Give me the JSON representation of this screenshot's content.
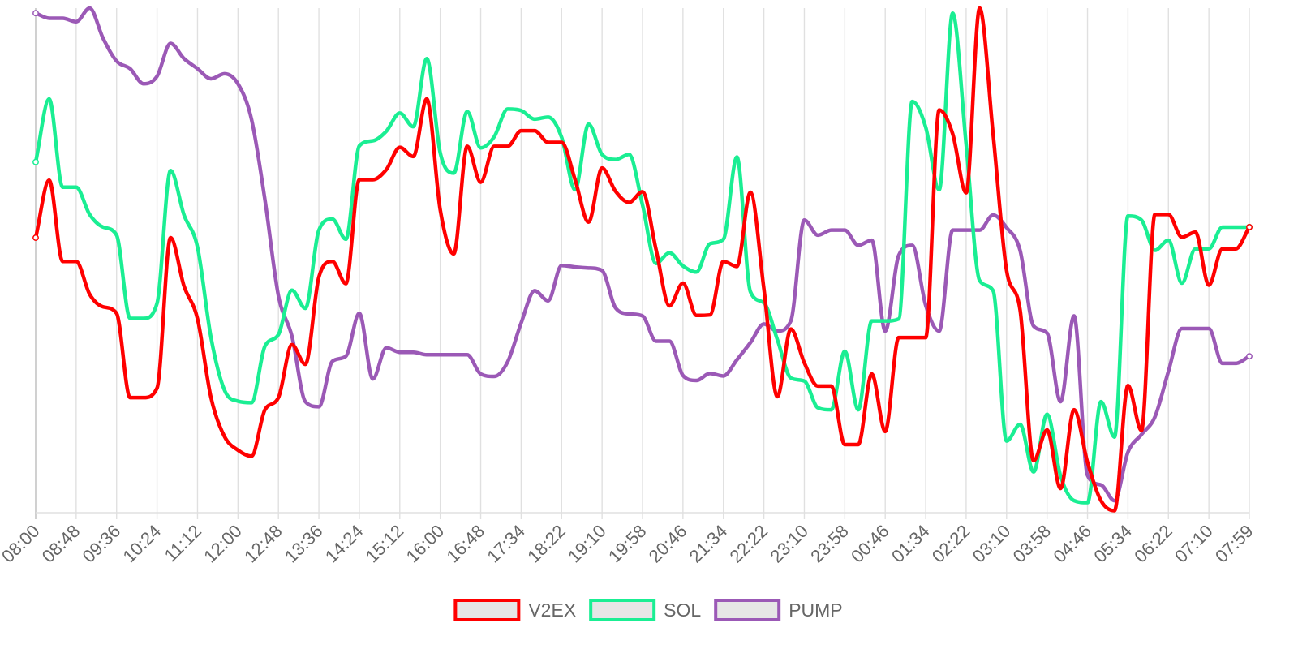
{
  "chart_data": {
    "type": "line",
    "title": "",
    "xlabel": "",
    "ylabel": "",
    "grid": {
      "vertical": true,
      "horizontal": false
    },
    "legend_position": "bottom-center",
    "normalized_y": true,
    "ylim": [
      0,
      1
    ],
    "x_tick_labels": [
      "08:00",
      "08:48",
      "09:36",
      "10:24",
      "11:12",
      "12:00",
      "12:48",
      "13:36",
      "14:24",
      "15:12",
      "16:00",
      "16:48",
      "17:34",
      "18:22",
      "19:10",
      "19:58",
      "20:46",
      "21:34",
      "22:22",
      "23:10",
      "23:58",
      "00:46",
      "01:34",
      "02:22",
      "03:10",
      "03:58",
      "04:46",
      "05:34",
      "06:22",
      "07:10",
      "07:59"
    ],
    "point_count": 91,
    "series": [
      {
        "name": "V2EX",
        "color": "#ff0000",
        "values": [
          0.545,
          0.659,
          0.498,
          0.498,
          0.433,
          0.408,
          0.395,
          0.228,
          0.228,
          0.247,
          0.545,
          0.449,
          0.384,
          0.228,
          0.151,
          0.124,
          0.112,
          0.204,
          0.228,
          0.333,
          0.294,
          0.467,
          0.498,
          0.454,
          0.66,
          0.66,
          0.68,
          0.724,
          0.706,
          0.82,
          0.6,
          0.513,
          0.726,
          0.655,
          0.726,
          0.726,
          0.757,
          0.757,
          0.734,
          0.734,
          0.66,
          0.576,
          0.683,
          0.637,
          0.615,
          0.636,
          0.522,
          0.41,
          0.455,
          0.391,
          0.392,
          0.498,
          0.488,
          0.635,
          0.444,
          0.23,
          0.364,
          0.297,
          0.251,
          0.251,
          0.135,
          0.135,
          0.275,
          0.161,
          0.347,
          0.347,
          0.347,
          0.798,
          0.751,
          0.634,
          1.0,
          0.75,
          0.48,
          0.402,
          0.103,
          0.164,
          0.048,
          0.204,
          0.1,
          0.024,
          0.004,
          0.252,
          0.163,
          0.591,
          0.591,
          0.546,
          0.556,
          0.451,
          0.523,
          0.523,
          0.566
        ]
      },
      {
        "name": "SOL",
        "color": "#1aee93",
        "values": [
          0.695,
          0.82,
          0.645,
          0.645,
          0.591,
          0.566,
          0.55,
          0.385,
          0.385,
          0.415,
          0.678,
          0.59,
          0.526,
          0.347,
          0.243,
          0.221,
          0.218,
          0.33,
          0.353,
          0.441,
          0.405,
          0.56,
          0.582,
          0.542,
          0.727,
          0.737,
          0.756,
          0.792,
          0.765,
          0.9,
          0.713,
          0.673,
          0.795,
          0.723,
          0.745,
          0.8,
          0.797,
          0.78,
          0.784,
          0.744,
          0.64,
          0.77,
          0.71,
          0.7,
          0.71,
          0.61,
          0.494,
          0.515,
          0.489,
          0.477,
          0.533,
          0.542,
          0.705,
          0.438,
          0.416,
          0.343,
          0.267,
          0.261,
          0.208,
          0.204,
          0.32,
          0.204,
          0.38,
          0.38,
          0.384,
          0.815,
          0.764,
          0.64,
          0.99,
          0.73,
          0.46,
          0.44,
          0.142,
          0.175,
          0.081,
          0.195,
          0.073,
          0.024,
          0.02,
          0.22,
          0.15,
          0.588,
          0.58,
          0.52,
          0.54,
          0.455,
          0.523,
          0.523,
          0.566,
          0.566,
          0.566
        ]
      },
      {
        "name": "PUMP",
        "color": "#9b59b6",
        "values": [
          0.99,
          0.98,
          0.98,
          0.973,
          1.0,
          0.94,
          0.895,
          0.88,
          0.85,
          0.865,
          0.93,
          0.9,
          0.88,
          0.86,
          0.87,
          0.85,
          0.78,
          0.62,
          0.43,
          0.35,
          0.22,
          0.21,
          0.3,
          0.31,
          0.395,
          0.265,
          0.327,
          0.318,
          0.318,
          0.313,
          0.313,
          0.313,
          0.313,
          0.275,
          0.27,
          0.299,
          0.376,
          0.44,
          0.42,
          0.49,
          0.487,
          0.485,
          0.48,
          0.406,
          0.394,
          0.39,
          0.34,
          0.34,
          0.272,
          0.262,
          0.276,
          0.271,
          0.303,
          0.337,
          0.374,
          0.36,
          0.38,
          0.58,
          0.55,
          0.56,
          0.56,
          0.53,
          0.54,
          0.36,
          0.51,
          0.53,
          0.411,
          0.36,
          0.56,
          0.56,
          0.56,
          0.59,
          0.565,
          0.52,
          0.37,
          0.356,
          0.22,
          0.39,
          0.074,
          0.055,
          0.024,
          0.12,
          0.155,
          0.19,
          0.28,
          0.365,
          0.365,
          0.365,
          0.296,
          0.296,
          0.31
        ]
      }
    ]
  },
  "legend": {
    "items": [
      {
        "label": "V2EX",
        "color": "#ff0000"
      },
      {
        "label": "SOL",
        "color": "#1aee93"
      },
      {
        "label": "PUMP",
        "color": "#9b59b6"
      }
    ]
  }
}
